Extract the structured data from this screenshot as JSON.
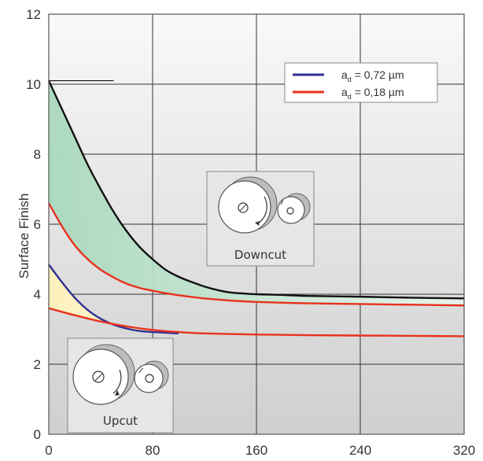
{
  "chart_data": {
    "type": "line",
    "title": "",
    "xlabel": "",
    "ylabel": "Surface Finish",
    "xlim": [
      0,
      320
    ],
    "ylim": [
      0,
      12
    ],
    "xticks": [
      "0",
      "80",
      "160",
      "240",
      "320"
    ],
    "yticks": [
      "0",
      "2",
      "4",
      "6",
      "8",
      "10",
      "12"
    ],
    "grid": true,
    "legend_position": "top-right",
    "legend": [
      {
        "label_main": "a",
        "label_sub": "d",
        "label_rest": " = 0,72 µm",
        "color": "#2e3192"
      },
      {
        "label_main": "a",
        "label_sub": "d",
        "label_rest": " = 0,18 µm",
        "color": "#e8321e"
      }
    ],
    "series": [
      {
        "color": "#111111",
        "x": [
          0,
          10,
          20,
          30,
          40,
          50,
          60,
          70,
          80,
          90,
          100,
          110,
          120,
          130,
          140,
          160,
          180,
          200,
          240,
          280,
          320
        ],
        "y": [
          10.1,
          9.3,
          8.5,
          7.7,
          7.0,
          6.35,
          5.8,
          5.35,
          5.0,
          4.7,
          4.5,
          4.35,
          4.22,
          4.12,
          4.05,
          4.0,
          3.98,
          3.95,
          3.93,
          3.9,
          3.88
        ]
      },
      {
        "color": "#e8321e",
        "x": [
          0,
          10,
          20,
          30,
          40,
          50,
          60,
          70,
          80,
          90,
          100,
          120,
          140,
          160,
          200,
          240,
          280,
          320
        ],
        "y": [
          6.6,
          5.95,
          5.4,
          5.0,
          4.7,
          4.48,
          4.3,
          4.18,
          4.1,
          4.03,
          3.97,
          3.88,
          3.82,
          3.78,
          3.74,
          3.72,
          3.7,
          3.68
        ]
      },
      {
        "color": "#2e3192",
        "x": [
          0,
          10,
          20,
          30,
          40,
          50,
          60,
          70,
          80,
          90,
          100
        ],
        "y": [
          4.85,
          4.35,
          3.9,
          3.55,
          3.3,
          3.13,
          3.02,
          2.95,
          2.92,
          2.9,
          2.88
        ]
      },
      {
        "color": "#e8321e",
        "x": [
          0,
          20,
          40,
          60,
          80,
          100,
          120,
          160,
          200,
          240,
          280,
          320
        ],
        "y": [
          3.6,
          3.4,
          3.22,
          3.08,
          2.98,
          2.92,
          2.88,
          2.85,
          2.83,
          2.82,
          2.81,
          2.8
        ]
      }
    ],
    "shaded_regions": [
      {
        "between_series": [
          0,
          1
        ],
        "color": "#bfe3cf"
      },
      {
        "between_series": [
          2,
          3
        ],
        "color": "#fff6c8"
      }
    ],
    "insets": [
      {
        "label": "Downcut"
      },
      {
        "label": "Upcut"
      }
    ]
  }
}
